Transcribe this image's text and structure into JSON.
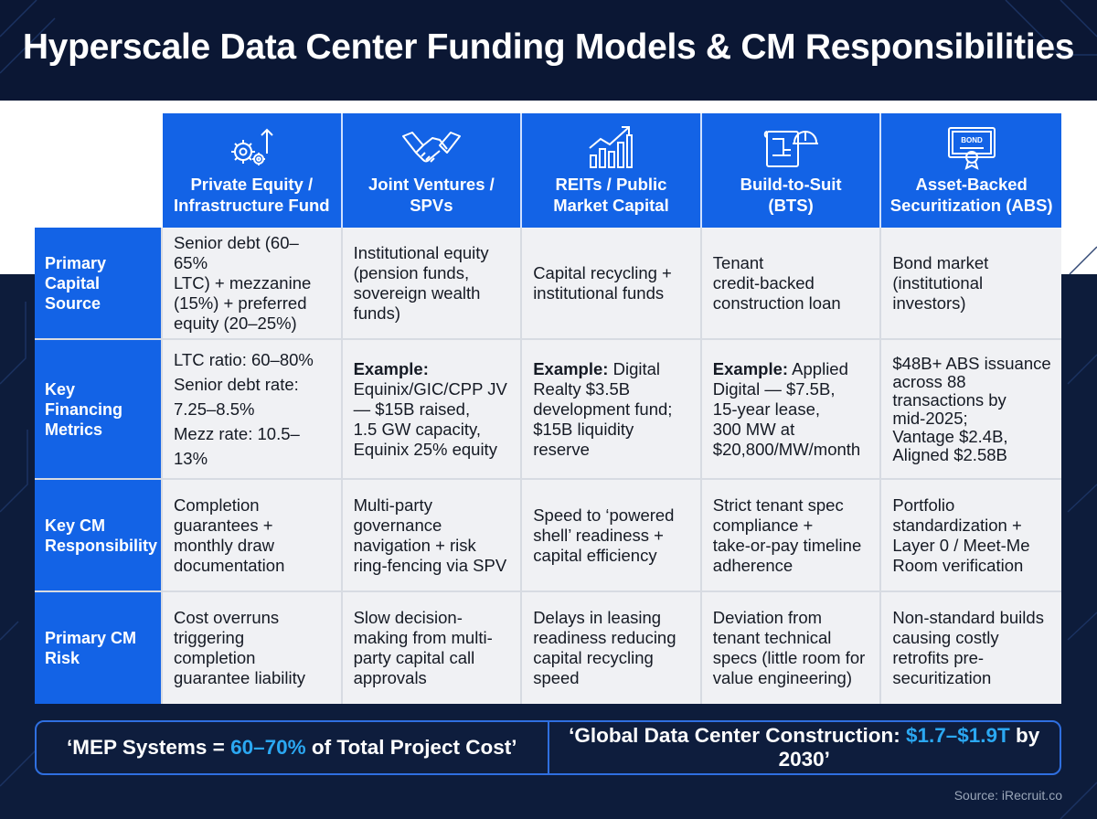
{
  "title": "Hyperscale Data Center Funding Models & CM Responsibilities",
  "columns": [
    {
      "label": "Private Equity /\nInfrastructure Fund",
      "icon": "gears-arrow-icon"
    },
    {
      "label": "Joint Ventures /\nSPVs",
      "icon": "handshake-icon"
    },
    {
      "label": "REITs / Public\nMarket Capital",
      "icon": "growth-chart-icon"
    },
    {
      "label": "Build-to-Suit\n(BTS)",
      "icon": "blueprint-hardhat-icon"
    },
    {
      "label": "Asset-Backed\nSecuritization (ABS)",
      "icon": "bond-certificate-icon"
    }
  ],
  "rows": [
    {
      "label": "Primary\nCapital\nSource",
      "cells": [
        {
          "text": "Senior debt (60–65%\nLTC) + mezzanine\n(15%) + preferred\nequity (20–25%)"
        },
        {
          "text": "Institutional equity\n(pension funds,\nsovereign wealth\nfunds)"
        },
        {
          "text": "Capital recycling +\ninstitutional funds"
        },
        {
          "text": "Tenant\ncredit-backed\nconstruction loan"
        },
        {
          "text": "Bond market\n(institutional\ninvestors)"
        }
      ]
    },
    {
      "label": "Key\nFinancing\nMetrics",
      "cells": [
        {
          "text": "LTC ratio: 60–80%\nSenior debt rate:\n7.25–8.5%\nMezz rate: 10.5–13%"
        },
        {
          "bold": "Example:",
          "text": "\nEquinix/GIC/CPP JV\n— $15B raised,\n1.5 GW capacity,\nEquinix 25% equity"
        },
        {
          "bold": "Example:",
          "text": " Digital\nRealty $3.5B\ndevelopment fund;\n$15B liquidity\nreserve"
        },
        {
          "bold": "Example:",
          "text": " Applied\nDigital — $7.5B,\n15-year lease,\n300 MW at\n$20,800/MW/month"
        },
        {
          "text": "$48B+ ABS issuance\nacross 88\ntransactions by\nmid-2025;\nVantage $2.4B,\nAligned $2.58B"
        }
      ]
    },
    {
      "label": "Key CM\nResponsibility",
      "cells": [
        {
          "text": "Completion\nguarantees +\nmonthly draw\ndocumentation"
        },
        {
          "text": "Multi-party\ngovernance\nnavigation + risk\nring-fencing via SPV"
        },
        {
          "text": "Speed to ‘powered\nshell’ readiness +\ncapital efficiency"
        },
        {
          "text": "Strict tenant spec\ncompliance +\ntake-or-pay timeline\nadherence"
        },
        {
          "text": "Portfolio\nstandardization +\nLayer 0 / Meet-Me\nRoom verification"
        }
      ]
    },
    {
      "label": "Primary CM\nRisk",
      "cells": [
        {
          "text": "Cost overruns\ntriggering\ncompletion\nguarantee liability"
        },
        {
          "text": "Slow decision-\nmaking from multi-\nparty capital call\napprovals"
        },
        {
          "text": "Delays in leasing\nreadiness reducing\ncapital recycling\nspeed"
        },
        {
          "text": "Deviation from\ntenant technical\nspecs (little room for\nvalue engineering)"
        },
        {
          "text": "Non-standard builds\ncausing costly\nretrofits pre-\nsecuritization"
        }
      ]
    }
  ],
  "banner": {
    "left_pre": "‘MEP Systems = ",
    "left_hl": "60–70%",
    "left_post": " of Total Project Cost’",
    "right_pre": "‘Global Data Center Construction: ",
    "right_hl": "$1.7–$1.9T",
    "right_post": " by 2030’"
  },
  "bond_text": "BOND",
  "source": "Source: iRecruit.co",
  "colors": {
    "accent": "#1363e6",
    "highlight": "#2ba8f2",
    "navy": "#0b1734"
  }
}
